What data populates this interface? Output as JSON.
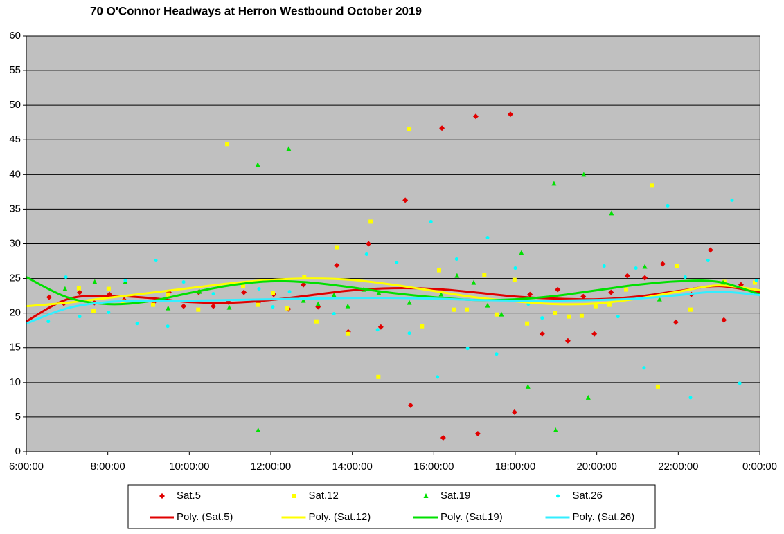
{
  "chart_data": {
    "type": "scatter",
    "title": "70 O'Connor Headways  at Herron Westbound  October 2019",
    "xlim": [
      6,
      24
    ],
    "xticks": [
      {
        "value": 6,
        "label": "6:00:00"
      },
      {
        "value": 8,
        "label": "8:00:00"
      },
      {
        "value": 10,
        "label": "10:00:00"
      },
      {
        "value": 12,
        "label": "12:00:00"
      },
      {
        "value": 14,
        "label": "14:00:00"
      },
      {
        "value": 16,
        "label": "16:00:00"
      },
      {
        "value": 18,
        "label": "18:00:00"
      },
      {
        "value": 20,
        "label": "20:00:00"
      },
      {
        "value": 22,
        "label": "22:00:00"
      },
      {
        "value": 24,
        "label": "0:00:00"
      }
    ],
    "ylim": [
      0,
      60
    ],
    "yticks": [
      0,
      5,
      10,
      15,
      20,
      25,
      30,
      35,
      40,
      45,
      50,
      55,
      60
    ],
    "grid": true,
    "legend": "bottom",
    "series": [
      {
        "name": "Sat.5",
        "kind": "marker",
        "marker": "diamond",
        "color": "#e00000",
        "x": [
          6.56,
          6.92,
          7.31,
          7.67,
          8.04,
          8.4,
          9.13,
          9.5,
          9.86,
          10.23,
          10.59,
          10.96,
          11.34,
          11.69,
          12.07,
          12.43,
          12.8,
          13.16,
          13.62,
          13.9,
          14.4,
          14.7,
          15.3,
          15.43,
          16.2,
          16.23,
          17.03,
          17.08,
          17.88,
          17.98,
          18.36,
          18.66,
          19.04,
          19.29,
          19.67,
          19.94,
          20.35,
          20.75,
          21.18,
          21.62,
          21.94,
          22.32,
          22.79,
          23.12,
          23.54
        ],
        "values": [
          22.3,
          21.4,
          23.0,
          21.5,
          22.7,
          21.9,
          21.6,
          23.0,
          21.0,
          23.0,
          21.0,
          21.6,
          23.0,
          21.5,
          22.7,
          20.6,
          24.1,
          20.9,
          26.9,
          17.3,
          30.0,
          18.0,
          36.3,
          6.7,
          46.7,
          2.0,
          48.4,
          2.6,
          48.7,
          5.7,
          22.7,
          17.0,
          23.4,
          16.0,
          22.4,
          17.0,
          23.0,
          25.4,
          25.1,
          27.1,
          18.7,
          22.7,
          29.1,
          19.0,
          24.1
        ]
      },
      {
        "name": "Sat.12",
        "kind": "marker",
        "marker": "square",
        "color": "#ffff00",
        "x": [
          7.29,
          7.65,
          8.02,
          8.38,
          9.11,
          9.48,
          10.22,
          10.93,
          11.32,
          11.68,
          12.05,
          12.41,
          12.82,
          13.12,
          13.62,
          13.9,
          14.45,
          14.64,
          15.4,
          15.71,
          16.13,
          16.49,
          16.81,
          17.24,
          17.54,
          17.98,
          18.29,
          18.97,
          19.31,
          19.63,
          19.97,
          20.31,
          20.72,
          21.35,
          21.5,
          21.96,
          22.3,
          23.13,
          23.88
        ],
        "values": [
          23.6,
          20.3,
          23.5,
          21.7,
          21.2,
          22.7,
          20.5,
          44.4,
          23.9,
          21.2,
          22.9,
          20.7,
          25.2,
          18.8,
          29.5,
          17.0,
          33.2,
          10.8,
          46.6,
          18.1,
          26.2,
          20.5,
          20.5,
          25.5,
          19.8,
          24.8,
          18.5,
          20.0,
          19.5,
          19.6,
          21.0,
          21.2,
          23.4,
          38.4,
          9.4,
          26.8,
          20.5,
          24.5,
          24.4
        ]
      },
      {
        "name": "Sat.19",
        "kind": "marker",
        "marker": "triangle",
        "color": "#00e000",
        "x": [
          6.95,
          7.68,
          8.43,
          9.48,
          10.25,
          10.98,
          11.68,
          11.69,
          12.44,
          12.8,
          13.16,
          13.55,
          13.89,
          14.28,
          14.65,
          15.4,
          16.18,
          16.57,
          16.98,
          17.32,
          17.66,
          18.15,
          18.31,
          18.95,
          18.99,
          19.68,
          19.79,
          20.36,
          21.18,
          21.54,
          23.1
        ],
        "values": [
          23.5,
          24.5,
          24.5,
          20.7,
          23.1,
          20.8,
          41.4,
          3.1,
          43.7,
          21.8,
          21.3,
          22.6,
          21.0,
          23.4,
          22.9,
          21.5,
          22.7,
          25.4,
          24.4,
          21.1,
          19.8,
          28.7,
          9.4,
          38.7,
          3.1,
          40.0,
          7.8,
          34.4,
          26.7,
          22.0,
          24.4
        ]
      },
      {
        "name": "Sat.26",
        "kind": "marker",
        "marker": "circle",
        "color": "#00ffff",
        "x": [
          6.54,
          6.97,
          7.31,
          8.02,
          8.43,
          8.72,
          9.18,
          9.47,
          9.86,
          10.59,
          11.71,
          12.05,
          12.46,
          13.55,
          14.35,
          14.62,
          15.09,
          15.4,
          15.93,
          16.09,
          16.56,
          16.83,
          17.32,
          17.54,
          18.0,
          18.32,
          18.66,
          20.18,
          20.52,
          20.96,
          21.16,
          21.74,
          22.17,
          22.3,
          22.73,
          23.32,
          23.51,
          23.92
        ],
        "values": [
          18.8,
          25.2,
          19.5,
          20.1,
          24.7,
          18.5,
          27.6,
          18.1,
          24.5,
          22.8,
          23.5,
          20.9,
          23.1,
          19.9,
          28.5,
          17.6,
          27.3,
          17.1,
          33.2,
          10.8,
          27.8,
          14.9,
          30.9,
          14.1,
          26.5,
          21.3,
          19.3,
          26.8,
          19.5,
          26.5,
          12.1,
          35.5,
          25.2,
          7.8,
          27.6,
          36.3,
          9.9,
          24.7
        ]
      },
      {
        "name": "Poly. (Sat.5)",
        "kind": "line",
        "color": "#e00000",
        "x": [
          6,
          7,
          8,
          9,
          10,
          11,
          12,
          13,
          14,
          15,
          16,
          17,
          18,
          19,
          20,
          21,
          22,
          23,
          24
        ],
        "values": [
          18.8,
          22.0,
          22.5,
          22.2,
          21.6,
          21.5,
          21.9,
          22.6,
          23.3,
          23.6,
          23.5,
          23.0,
          22.4,
          22.1,
          22.0,
          22.4,
          23.2,
          23.9,
          23.0
        ]
      },
      {
        "name": "Poly. (Sat.12)",
        "kind": "line",
        "color": "#ffff00",
        "x": [
          6,
          7,
          8,
          9,
          10,
          11,
          12,
          13,
          14,
          15,
          16,
          17,
          18,
          19,
          20,
          21,
          22,
          23,
          24
        ],
        "values": [
          21.0,
          21.5,
          22.2,
          22.9,
          23.6,
          24.3,
          24.8,
          25.0,
          24.8,
          24.1,
          23.2,
          22.3,
          21.7,
          21.3,
          21.4,
          22.1,
          23.1,
          24.0,
          23.3
        ]
      },
      {
        "name": "Poly. (Sat.19)",
        "kind": "line",
        "color": "#00e000",
        "x": [
          6,
          7,
          8,
          9,
          10,
          11,
          12,
          13,
          14,
          15,
          16,
          17,
          18,
          19,
          20,
          21,
          22,
          23,
          24
        ],
        "values": [
          25.2,
          22.3,
          21.3,
          21.7,
          22.9,
          24.0,
          24.6,
          24.4,
          23.7,
          22.9,
          22.3,
          21.9,
          22.0,
          22.5,
          23.3,
          24.1,
          24.6,
          24.5,
          22.7
        ]
      },
      {
        "name": "Poly. (Sat.26)",
        "kind": "line",
        "color": "#33eeff",
        "x": [
          6,
          7,
          8,
          9,
          10,
          11,
          12,
          13,
          14,
          15,
          16,
          17,
          18,
          19,
          20,
          21,
          22,
          23,
          24
        ],
        "values": [
          18.5,
          20.7,
          21.6,
          21.8,
          21.8,
          21.9,
          22.0,
          22.1,
          22.2,
          22.2,
          22.1,
          21.9,
          21.8,
          21.8,
          21.9,
          22.1,
          22.6,
          23.1,
          22.6
        ]
      }
    ]
  }
}
